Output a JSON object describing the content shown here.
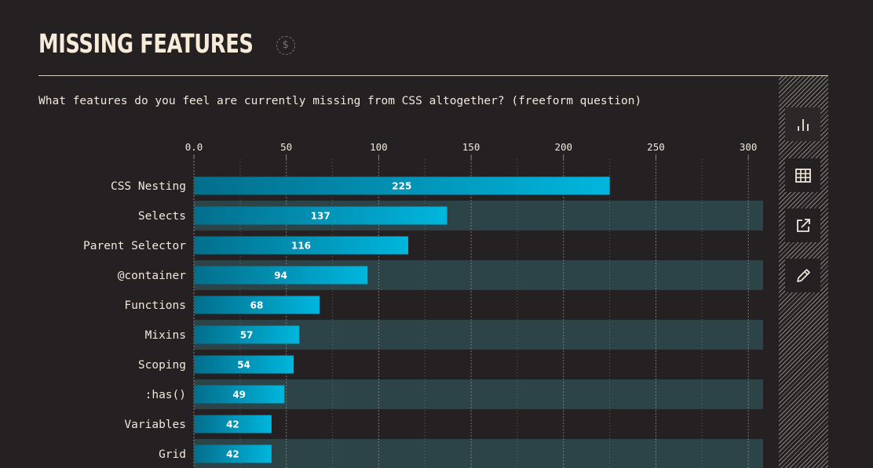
{
  "header": {
    "title": "MISSING FEATURES",
    "badge_symbol": "$"
  },
  "question": "What features do you feel are currently missing from CSS altogether? (freeform question)",
  "sidebar": {
    "buttons": [
      {
        "name": "chart-view-button",
        "icon": "bar-chart-icon",
        "active": true
      },
      {
        "name": "table-view-button",
        "icon": "table-icon",
        "active": false
      },
      {
        "name": "share-button",
        "icon": "external-link-icon",
        "active": false
      },
      {
        "name": "edit-button",
        "icon": "pencil-icon",
        "active": false
      }
    ]
  },
  "colors": {
    "background": "#252122",
    "stripe": "#2c4448",
    "bar_start": "#036e8c",
    "bar_end": "#00b6dd",
    "grid": "#8a8380",
    "text": "#f1e8dc"
  },
  "chart_data": {
    "type": "bar",
    "orientation": "horizontal",
    "categories": [
      "CSS Nesting",
      "Selects",
      "Parent Selector",
      "@container",
      "Functions",
      "Mixins",
      "Scoping",
      ":has()",
      "Variables",
      "Grid"
    ],
    "values": [
      225,
      137,
      116,
      94,
      68,
      57,
      54,
      49,
      42,
      42
    ],
    "x_ticks": [
      "0.0",
      "50",
      "100",
      "150",
      "200",
      "250",
      "300"
    ],
    "xlim": [
      0,
      308
    ],
    "grid": true,
    "title": "",
    "xlabel": "",
    "ylabel": ""
  }
}
